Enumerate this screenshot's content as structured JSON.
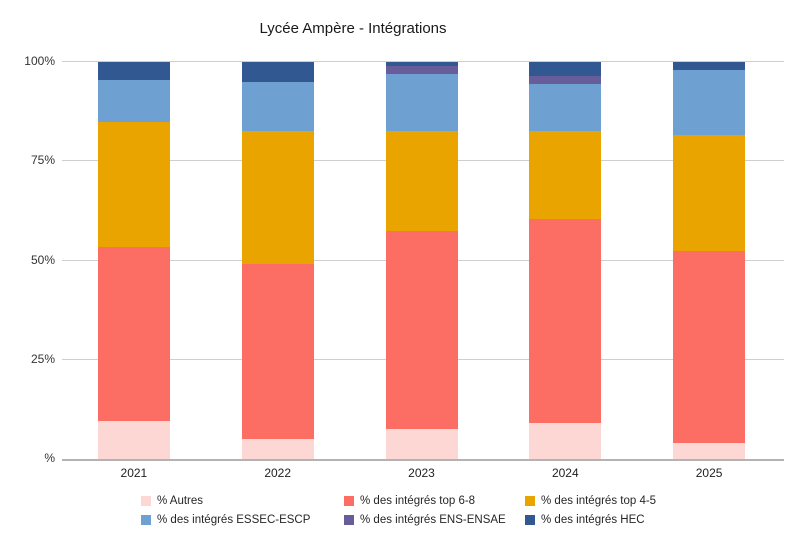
{
  "chart_data": {
    "type": "bar",
    "stacked": true,
    "title": "Lycée Ampère - Intégrations",
    "categories": [
      "2021",
      "2022",
      "2023",
      "2024",
      "2025"
    ],
    "series": [
      {
        "name": "% Autres",
        "color": "#FCD7D4",
        "values": [
          9.5,
          5,
          7.5,
          9,
          4
        ]
      },
      {
        "name": "% des intégrés top 6-8",
        "color": "#FC6D64",
        "values": [
          44,
          44,
          50,
          51.5,
          48.5
        ]
      },
      {
        "name": "% des intégrés top 4-5",
        "color": "#E9A400",
        "values": [
          31.5,
          33.5,
          25,
          22,
          29
        ]
      },
      {
        "name": "% des intégrés ESSEC-ESCP",
        "color": "#6FA0D2",
        "values": [
          10.5,
          12.5,
          14.5,
          12,
          16.5
        ]
      },
      {
        "name": "% des intégrés ENS-ENSAE",
        "color": "#685D9B",
        "values": [
          0,
          0,
          2,
          2,
          0
        ]
      },
      {
        "name": "% des intégrés HEC",
        "color": "#315891",
        "values": [
          4.5,
          5,
          1,
          3.5,
          2
        ]
      }
    ],
    "xlabel": "",
    "ylabel": "",
    "ylim": [
      0,
      100
    ],
    "yticks": [
      {
        "label": "%",
        "value": 0
      },
      {
        "label": "25%",
        "value": 25
      },
      {
        "label": "50%",
        "value": 50
      },
      {
        "label": "75%",
        "value": 75
      },
      {
        "label": "100%",
        "value": 100
      }
    ],
    "grid": true,
    "legend_position": "bottom"
  }
}
